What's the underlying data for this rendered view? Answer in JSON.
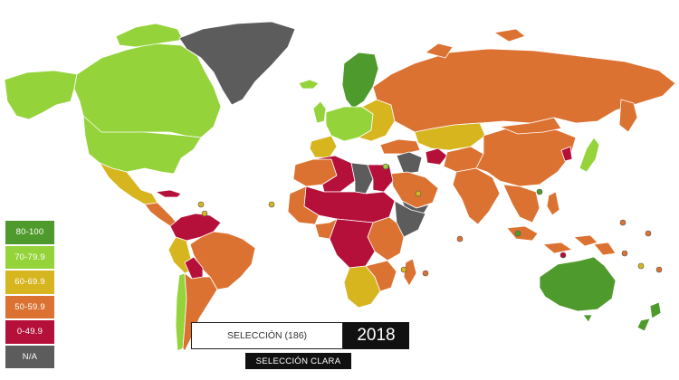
{
  "legend": {
    "items": [
      {
        "label": "80-100",
        "color": "#4f9a2c"
      },
      {
        "label": "70-79.9",
        "color": "#94d33a"
      },
      {
        "label": "60-69.9",
        "color": "#d6b51f"
      },
      {
        "label": "50-59.9",
        "color": "#dc7232"
      },
      {
        "label": "0-49.9",
        "color": "#b5103a"
      },
      {
        "label": "N/A",
        "color": "#5c5c5c"
      }
    ]
  },
  "controls": {
    "selection_label": "SELECCIÓN (186)",
    "year": "2018",
    "clear_label": "SELECCIÓN CLARA"
  }
}
